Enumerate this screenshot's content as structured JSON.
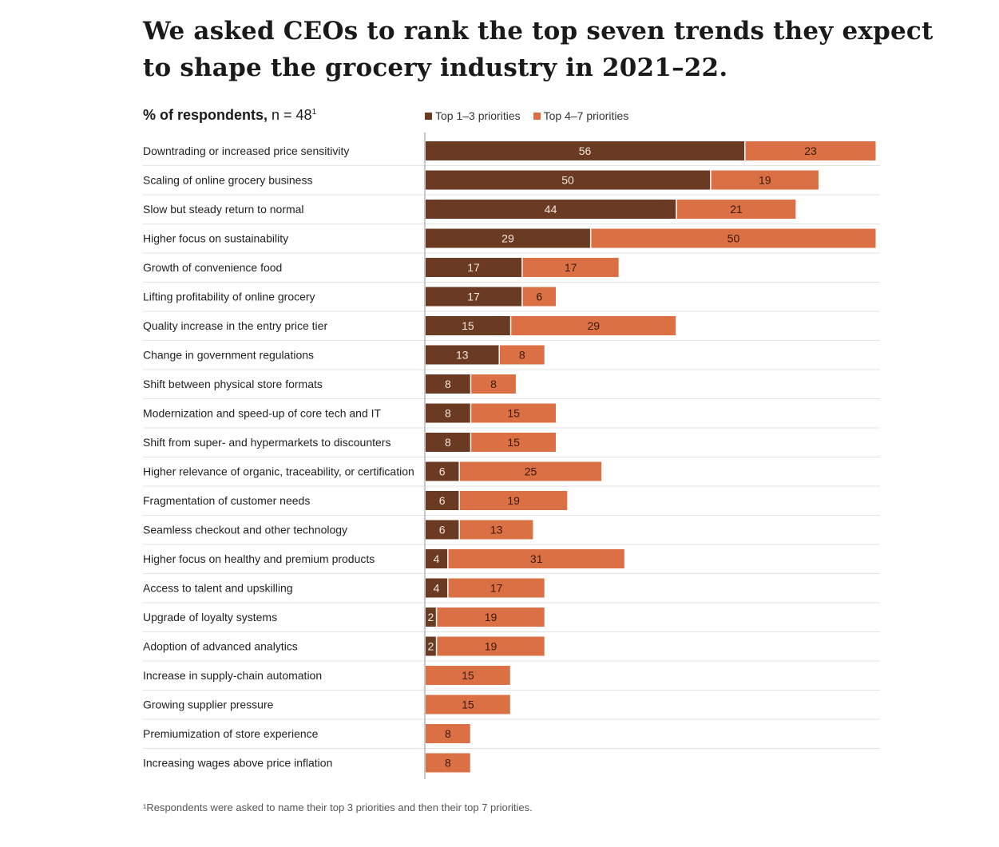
{
  "chart_data": {
    "type": "bar",
    "orientation": "horizontal",
    "stacked": true,
    "title": "We asked CEOs to rank the top seven trends they expect to shape the grocery industry in 2021–22.",
    "subtitle_bold": "% of respondents,",
    "subtitle_rest": " n = 48",
    "subtitle_sup": "1",
    "xlim": [
      0,
      79
    ],
    "grid": false,
    "legend_position": "top",
    "categories": [
      "Downtrading or increased price sensitivity",
      "Scaling of online grocery business",
      "Slow but steady return to normal",
      "Higher focus on sustainability",
      "Growth of convenience food",
      "Lifting profitability of online grocery",
      "Quality increase in the entry price tier",
      "Change in government regulations",
      "Shift between physical store formats",
      "Modernization and speed-up of core tech and IT",
      "Shift from super- and hypermarkets to discounters",
      "Higher relevance of organic, traceability, or certification",
      "Fragmentation of customer needs",
      "Seamless checkout and other technology",
      "Higher focus on healthy and premium products",
      "Access to talent and upskilling",
      "Upgrade of loyalty systems",
      "Adoption of advanced analytics",
      "Increase in supply-chain automation",
      "Growing supplier pressure",
      "Premiumization of store experience",
      "Increasing wages above price inflation"
    ],
    "series": [
      {
        "name": "Top 1–3 priorities",
        "color": "#6b3a22",
        "label_color": "#f2e6dc",
        "values": [
          56,
          50,
          44,
          29,
          17,
          17,
          15,
          13,
          8,
          8,
          8,
          6,
          6,
          6,
          4,
          4,
          2,
          2,
          0,
          0,
          0,
          0
        ]
      },
      {
        "name": "Top 4–7 priorities",
        "color": "#db7044",
        "label_color": "#3a1a0c",
        "values": [
          23,
          19,
          21,
          50,
          17,
          6,
          29,
          8,
          8,
          15,
          15,
          25,
          19,
          13,
          31,
          17,
          19,
          19,
          15,
          15,
          8,
          8
        ]
      }
    ],
    "footnote": "¹Respondents were asked to name their top 3 priorities and then their top 7 priorities."
  },
  "colors": {
    "axis": "#b5b5b5",
    "divider": "#e3e3e3"
  }
}
